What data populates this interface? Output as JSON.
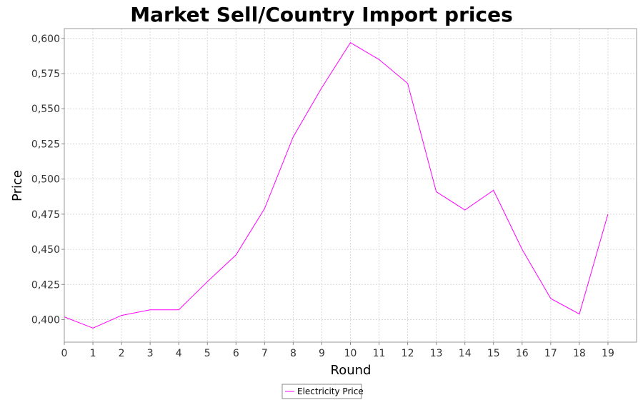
{
  "chart_data": {
    "type": "line",
    "title": "Market Sell/Country Import prices",
    "xlabel": "Round",
    "ylabel": "Price",
    "x": [
      0,
      1,
      2,
      3,
      4,
      5,
      6,
      7,
      8,
      9,
      10,
      11,
      12,
      13,
      14,
      15,
      16,
      17,
      18,
      19
    ],
    "xlim": [
      0,
      20
    ],
    "ylim": [
      0.384,
      0.607
    ],
    "x_ticks": [
      "0",
      "1",
      "2",
      "3",
      "4",
      "5",
      "6",
      "7",
      "8",
      "9",
      "10",
      "11",
      "12",
      "13",
      "14",
      "15",
      "16",
      "17",
      "18",
      "19"
    ],
    "y_ticks": [
      "0,400",
      "0,425",
      "0,450",
      "0,475",
      "0,500",
      "0,525",
      "0,550",
      "0,575",
      "0,600"
    ],
    "y_tick_values": [
      0.4,
      0.425,
      0.45,
      0.475,
      0.5,
      0.525,
      0.55,
      0.575,
      0.6
    ],
    "grid": true,
    "legend_position": "bottom-center",
    "series": [
      {
        "name": "Electricity Price",
        "color": "#ff00ff",
        "values": [
          0.402,
          0.394,
          0.403,
          0.407,
          0.407,
          0.427,
          0.446,
          0.479,
          0.53,
          0.565,
          0.597,
          0.585,
          0.568,
          0.491,
          0.478,
          0.492,
          0.45,
          0.415,
          0.404,
          0.475
        ]
      }
    ]
  }
}
